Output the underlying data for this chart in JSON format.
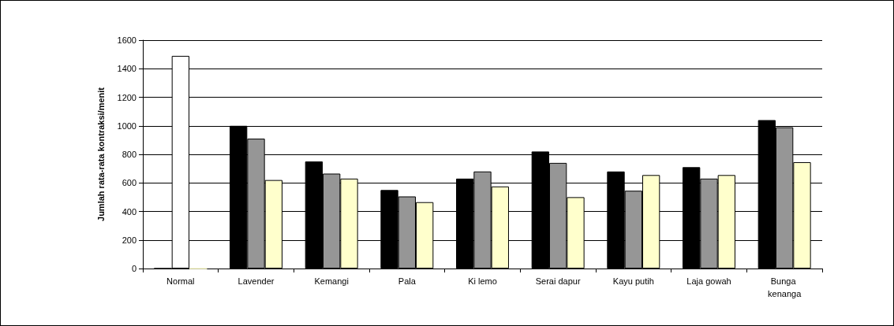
{
  "chart_data": {
    "type": "bar",
    "ylabel": "Jumlah rata-rata kontraksi/menit",
    "categories": [
      "Normal",
      "Lavender",
      "Kemangi",
      "Pala",
      "Ki lemo",
      "Serai dapur",
      "Kayu putih",
      "Laja gowah",
      "Bunga kenanga"
    ],
    "series": [
      {
        "color": "#000000",
        "values": [
          0,
          1000,
          750,
          550,
          630,
          820,
          680,
          710,
          1040
        ]
      },
      {
        "color": "#969696",
        "colors": [
          "#ffffff",
          "#969696",
          "#969696",
          "#969696",
          "#969696",
          "#969696",
          "#969696",
          "#969696",
          "#969696"
        ],
        "values": [
          1490,
          910,
          665,
          505,
          680,
          740,
          545,
          630,
          990
        ]
      },
      {
        "color": "#ffffcc",
        "values": [
          0,
          620,
          630,
          465,
          575,
          500,
          655,
          655,
          745
        ]
      }
    ],
    "ylim": [
      0,
      1600
    ],
    "yticks": [
      0,
      200,
      400,
      600,
      800,
      1000,
      1200,
      1400,
      1600
    ],
    "grid": "y"
  }
}
